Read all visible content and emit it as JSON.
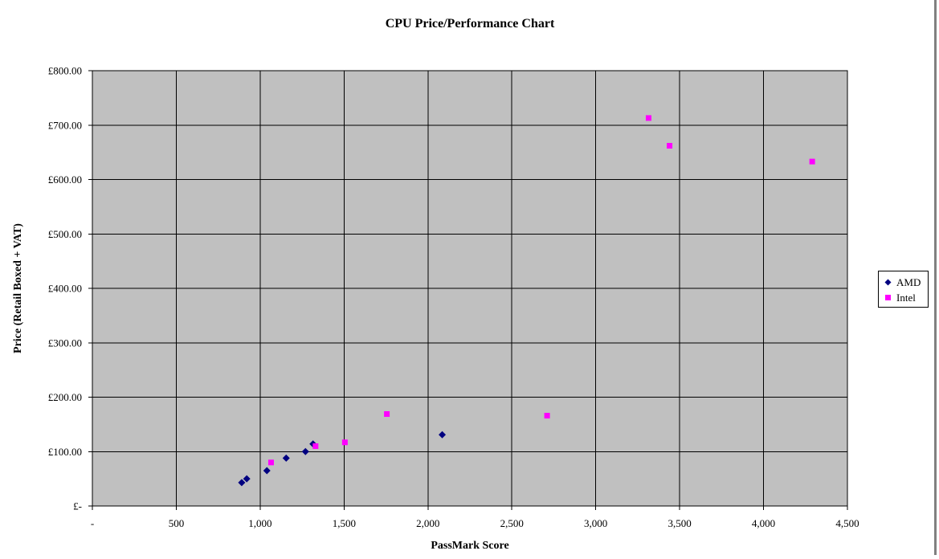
{
  "chart_data": {
    "type": "scatter",
    "title": "CPU Price/Performance Chart",
    "xlabel": "PassMark Score",
    "ylabel": "Price (Retail Boxed + VAT)",
    "xlim": [
      0,
      4500
    ],
    "ylim": [
      0,
      800
    ],
    "x_tick_step": 500,
    "y_tick_step": 100,
    "x_tick_labels": [
      "-",
      "500",
      "1,000",
      "1,500",
      "2,000",
      "2,500",
      "3,000",
      "3,500",
      "4,000",
      "4,500"
    ],
    "y_tick_labels": [
      "£-",
      "£100.00",
      "£200.00",
      "£300.00",
      "£400.00",
      "£500.00",
      "£600.00",
      "£700.00",
      "£800.00"
    ],
    "grid": true,
    "plot_bg": "#c0c0c0",
    "gridline_color": "#000000",
    "legend_position": "right",
    "series": [
      {
        "name": "AMD",
        "marker": "diamond",
        "color": "#000080",
        "points": [
          [
            890,
            43
          ],
          [
            920,
            50
          ],
          [
            1040,
            65
          ],
          [
            1155,
            88
          ],
          [
            1270,
            100
          ],
          [
            1315,
            114
          ],
          [
            2085,
            131
          ]
        ]
      },
      {
        "name": "Intel",
        "marker": "square",
        "color": "#ff00ff",
        "points": [
          [
            1065,
            80
          ],
          [
            1330,
            110
          ],
          [
            1505,
            117
          ],
          [
            1755,
            169
          ],
          [
            2710,
            166
          ],
          [
            3315,
            713
          ],
          [
            3440,
            662
          ],
          [
            4290,
            633
          ]
        ]
      }
    ]
  }
}
